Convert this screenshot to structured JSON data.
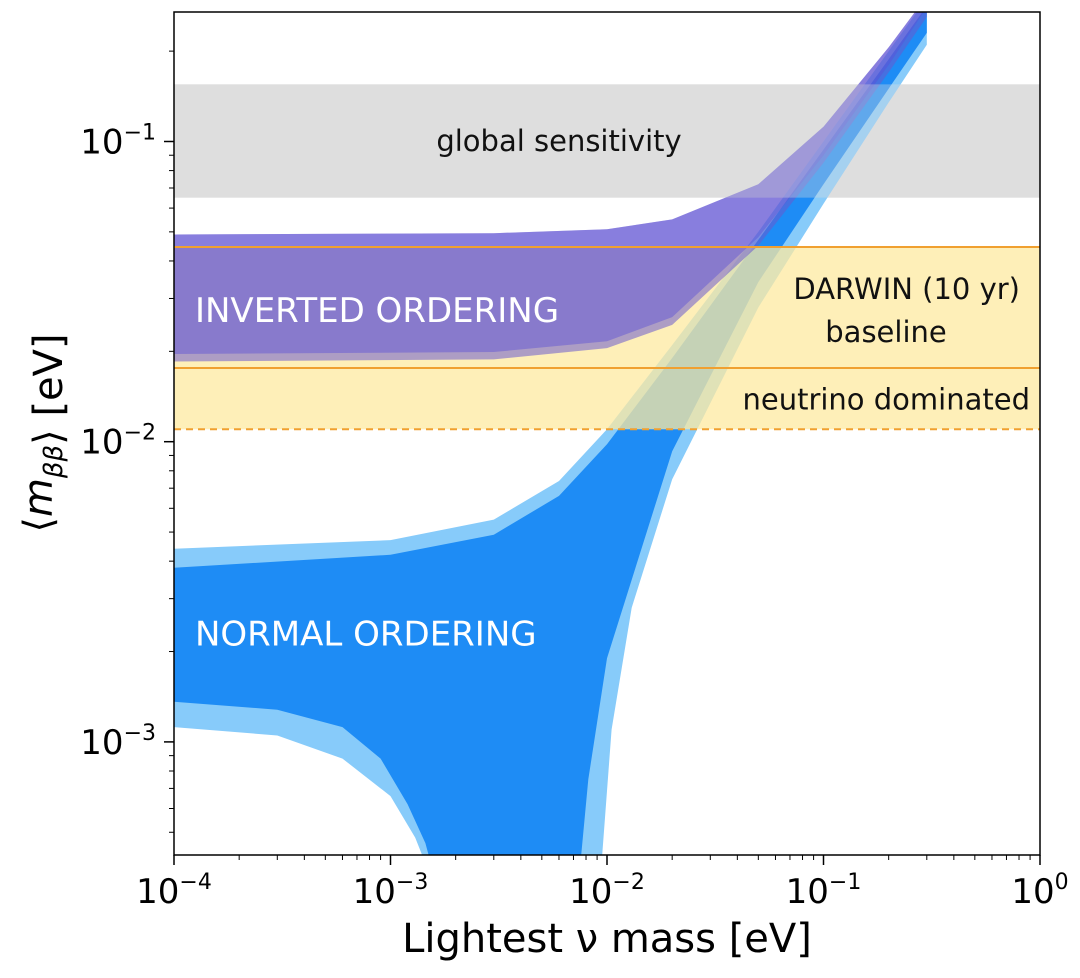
{
  "chart_data": {
    "type": "area",
    "xscale": "log",
    "yscale": "log",
    "xlim": [
      0.0001,
      1
    ],
    "ylim": [
      0.00042,
      0.27
    ],
    "xlabel": "Lightest ν mass [eV]",
    "ylabel": "⟨m_ββ⟩ [eV]",
    "x_ticks": [
      {
        "base": "10",
        "exp": "−4",
        "value": 0.0001
      },
      {
        "base": "10",
        "exp": "−3",
        "value": 0.001
      },
      {
        "base": "10",
        "exp": "−2",
        "value": 0.01
      },
      {
        "base": "10",
        "exp": "−1",
        "value": 0.1
      },
      {
        "base": "10",
        "exp": "0",
        "value": 1
      }
    ],
    "y_ticks": [
      {
        "base": "10",
        "exp": "−3",
        "value": 0.001
      },
      {
        "base": "10",
        "exp": "−2",
        "value": 0.01
      },
      {
        "base": "10",
        "exp": "−1",
        "value": 0.1
      }
    ],
    "horizontal_bands": [
      {
        "name": "global sensitivity",
        "label": "global sensitivity",
        "y_low": 0.065,
        "y_high": 0.155,
        "color": "#dcdcdc",
        "opacity": 0.9
      },
      {
        "name": "DARWIN baseline",
        "label_line1": "DARWIN (10 yr)",
        "label_line2": "baseline",
        "y_low": 0.0176,
        "y_high": 0.0445,
        "color": "#fde9a0",
        "opacity": 0.75,
        "edge_color": "#f0a030"
      },
      {
        "name": "neutrino dominated",
        "label": "neutrino dominated",
        "y_low": 0.011,
        "y_high": 0.0176,
        "color": "#fde9a0",
        "opacity": 0.75,
        "edge_color": "#f0a030",
        "dashed_lower": true
      }
    ],
    "series": [
      {
        "name": "INVERTED ORDERING",
        "color_outer": "#6a5acd",
        "color_inner": "#5b4fd6",
        "outer_upper": [
          [
            0.0001,
            0.049
          ],
          [
            0.003,
            0.0495
          ],
          [
            0.01,
            0.051
          ],
          [
            0.02,
            0.055
          ],
          [
            0.05,
            0.072
          ],
          [
            0.1,
            0.112
          ],
          [
            0.2,
            0.206
          ],
          [
            0.3,
            0.305
          ]
        ],
        "outer_lower": [
          [
            0.0001,
            0.0185
          ],
          [
            0.003,
            0.0188
          ],
          [
            0.01,
            0.0205
          ],
          [
            0.02,
            0.0245
          ],
          [
            0.05,
            0.045
          ],
          [
            0.1,
            0.085
          ],
          [
            0.2,
            0.17
          ],
          [
            0.3,
            0.26
          ]
        ],
        "inner_lower": [
          [
            0.0001,
            0.0196
          ],
          [
            0.003,
            0.0199
          ],
          [
            0.01,
            0.0216
          ],
          [
            0.02,
            0.026
          ],
          [
            0.05,
            0.048
          ],
          [
            0.1,
            0.09
          ],
          [
            0.2,
            0.18
          ],
          [
            0.3,
            0.28
          ]
        ]
      },
      {
        "name": "NORMAL ORDERING",
        "color_outer": "#87cbfa",
        "color_inner": "#1e8cf5",
        "outer_upper": [
          [
            0.0001,
            0.0044
          ],
          [
            0.001,
            0.0047
          ],
          [
            0.003,
            0.0055
          ],
          [
            0.006,
            0.0074
          ],
          [
            0.01,
            0.011
          ],
          [
            0.02,
            0.021
          ],
          [
            0.05,
            0.05
          ],
          [
            0.1,
            0.1
          ],
          [
            0.2,
            0.2
          ],
          [
            0.3,
            0.3
          ]
        ],
        "inner_upper": [
          [
            0.0001,
            0.0038
          ],
          [
            0.001,
            0.0042
          ],
          [
            0.003,
            0.0049
          ],
          [
            0.006,
            0.0066
          ],
          [
            0.01,
            0.0098
          ],
          [
            0.02,
            0.019
          ],
          [
            0.05,
            0.047
          ],
          [
            0.1,
            0.094
          ],
          [
            0.2,
            0.188
          ],
          [
            0.3,
            0.283
          ]
        ],
        "outer_lower_left": [
          [
            0.0001,
            0.00112
          ],
          [
            0.0003,
            0.00105
          ],
          [
            0.0006,
            0.00088
          ],
          [
            0.001,
            0.00066
          ],
          [
            0.0013,
            0.00048
          ],
          [
            0.0014,
            0.00042
          ]
        ],
        "inner_lower_left": [
          [
            0.0001,
            0.00136
          ],
          [
            0.0003,
            0.00128
          ],
          [
            0.0006,
            0.00112
          ],
          [
            0.0009,
            0.00088
          ],
          [
            0.0012,
            0.00062
          ],
          [
            0.00145,
            0.00046
          ],
          [
            0.0015,
            0.00042
          ]
        ],
        "inner_lower_right": [
          [
            0.0076,
            0.00042
          ],
          [
            0.0082,
            0.00075
          ],
          [
            0.01,
            0.0019
          ],
          [
            0.02,
            0.0093
          ],
          [
            0.05,
            0.034
          ],
          [
            0.1,
            0.072
          ],
          [
            0.2,
            0.15
          ],
          [
            0.3,
            0.23
          ]
        ],
        "outer_lower_right": [
          [
            0.0095,
            0.00042
          ],
          [
            0.0105,
            0.0011
          ],
          [
            0.013,
            0.0028
          ],
          [
            0.02,
            0.0075
          ],
          [
            0.05,
            0.028
          ],
          [
            0.1,
            0.062
          ],
          [
            0.2,
            0.135
          ],
          [
            0.3,
            0.21
          ]
        ]
      }
    ],
    "annotations": [
      {
        "name": "inverted-label",
        "text": "INVERTED ORDERING",
        "x": 0.000125,
        "y": 0.0275
      },
      {
        "name": "normal-label",
        "text": "NORMAL ORDERING",
        "x": 0.000125,
        "y": 0.0023
      }
    ],
    "grid": false,
    "legend": "none"
  }
}
